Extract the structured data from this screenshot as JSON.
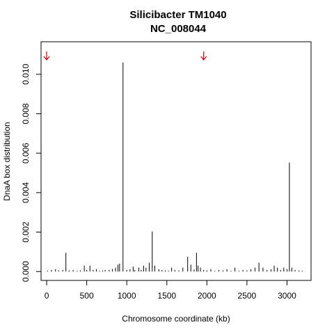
{
  "chart_data": {
    "type": "bar",
    "title": "Silicibacter TM1040",
    "subtitle": "NC_008044",
    "xlabel": "Chromosome coordinate (kb)",
    "ylabel": "DnaA box distribution",
    "xlim": [
      -70,
      3300
    ],
    "ylim": [
      -0.00045,
      0.01165
    ],
    "x_ticks": [
      0,
      500,
      1000,
      1500,
      2000,
      2500,
      3000
    ],
    "y_ticks": [
      0.0,
      0.002,
      0.004,
      0.006,
      0.008,
      0.01
    ],
    "y_tick_labels": [
      "0.000",
      "0.002",
      "0.004",
      "0.006",
      "0.008",
      "0.010"
    ],
    "bar_color": "#000000",
    "arrow_color": "#cc0000",
    "arrows_at_kb": [
      0,
      1960
    ],
    "series": [
      {
        "x": [
          10,
          60,
          110,
          150,
          200,
          240,
          280,
          330,
          380,
          420,
          470,
          500,
          540,
          580,
          620,
          660,
          700,
          730,
          780,
          820,
          860,
          890,
          910,
          953,
          1000,
          1040,
          1080,
          1100,
          1150,
          1180,
          1210,
          1240,
          1280,
          1318,
          1350,
          1400,
          1440,
          1480,
          1520,
          1560,
          1600,
          1650,
          1700,
          1760,
          1800,
          1840,
          1870,
          1890,
          1920,
          1960,
          2000,
          2050,
          2100,
          2150,
          2200,
          2250,
          2300,
          2350,
          2400,
          2450,
          2500,
          2550,
          2600,
          2650,
          2700,
          2750,
          2800,
          2840,
          2880,
          2920,
          2960,
          3000,
          3030,
          3060,
          3100,
          3150,
          3190
        ],
        "values": [
          5e-05,
          8e-05,
          0.00012,
          6e-05,
          8e-05,
          0.00095,
          6e-05,
          8e-05,
          4e-05,
          6e-05,
          0.0003,
          8e-05,
          0.0003,
          8e-05,
          0.00012,
          4e-05,
          6e-05,
          8e-05,
          8e-05,
          0.00012,
          0.0002,
          0.00035,
          0.0004,
          0.0106,
          8e-05,
          0.00012,
          0.00025,
          8e-05,
          0.0002,
          8e-05,
          0.0003,
          0.0002,
          0.00045,
          0.00203,
          0.0003,
          0.00012,
          8e-05,
          6e-05,
          4e-05,
          0.0002,
          8e-05,
          6e-05,
          0.0002,
          0.00075,
          0.00035,
          0.0001,
          0.00095,
          0.0003,
          0.0002,
          8e-05,
          6e-05,
          0.00012,
          4e-05,
          8e-05,
          6e-05,
          0.00012,
          4e-05,
          0.0002,
          4e-05,
          8e-05,
          6e-05,
          0.00012,
          0.0002,
          0.00045,
          0.0002,
          8e-05,
          0.00012,
          0.0003,
          0.0002,
          8e-05,
          0.0002,
          0.00012,
          0.00552,
          0.0002,
          8e-05,
          6e-05,
          4e-05
        ]
      }
    ]
  }
}
